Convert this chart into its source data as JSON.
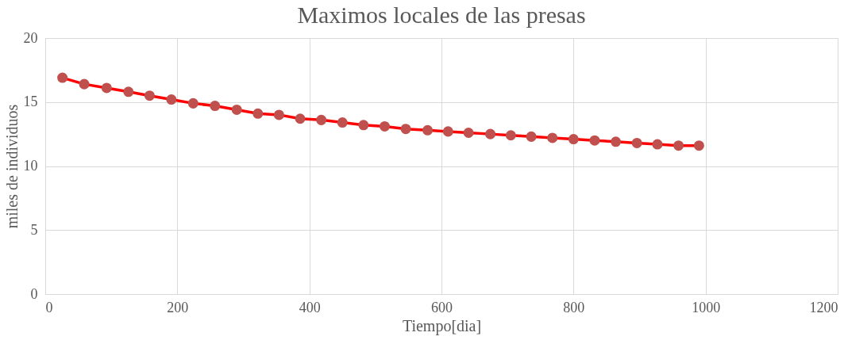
{
  "chart_data": {
    "type": "line",
    "title": "Maximos locales de las presas",
    "xlabel": "Tiempo[dia]",
    "ylabel": "miles de individuos",
    "x": [
      26,
      59,
      93,
      126,
      158,
      191,
      224,
      257,
      290,
      322,
      354,
      386,
      418,
      450,
      482,
      514,
      546,
      579,
      610,
      641,
      674,
      705,
      736,
      768,
      800,
      832,
      864,
      896,
      927,
      959,
      990
    ],
    "series": [
      {
        "color": "#ff0000",
        "colors": [
          "#c0504d",
          "#c0504d",
          "#c0504d",
          "#c0504d",
          "#c0504d",
          "#c0504d",
          "#c0504d",
          "#c0504d",
          "#c0504d",
          "#c0504d",
          "#c0504d",
          "#c0504d",
          "#c0504d",
          "#c0504d",
          "#c0504d",
          "#c0504d",
          "#c0504d",
          "#c0504d",
          "#c0504d",
          "#c0504d",
          "#c0504d",
          "#c0504d",
          "#c0504d",
          "#c0504d",
          "#c0504d",
          "#c0504d",
          "#c0504d",
          "#c0504d",
          "#c0504d",
          "#c0504d",
          "#c0504d"
        ],
        "values": [
          16.9,
          16.4,
          16.1,
          15.8,
          15.5,
          15.2,
          14.9,
          14.7,
          14.4,
          14.1,
          14.0,
          13.7,
          13.6,
          13.4,
          13.2,
          13.1,
          12.9,
          12.8,
          12.7,
          12.6,
          12.5,
          12.4,
          12.3,
          12.2,
          12.1,
          12.0,
          11.9,
          11.8,
          11.7,
          11.6,
          11.6
        ]
      }
    ],
    "xlim": [
      0,
      1200
    ],
    "xticks": [
      0,
      200,
      400,
      600,
      800,
      1000,
      1200
    ],
    "ylim": [
      0,
      20
    ],
    "yticks": [
      0,
      5,
      10,
      15,
      20
    ],
    "grid": true,
    "marker": "circle",
    "line_style": "solid"
  }
}
